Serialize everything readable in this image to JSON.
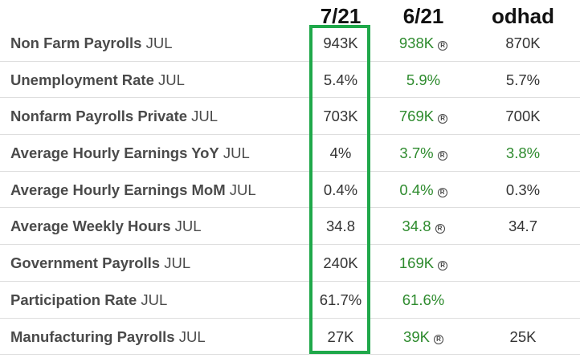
{
  "columns": [
    "7/21",
    "6/21",
    "odhad"
  ],
  "colors": {
    "highlight": "#1fa84a",
    "revised_green": "#2e8b2e",
    "label": "#4a4a4a"
  },
  "rows": [
    {
      "label_bold": "Non Farm Payrolls",
      "label_suffix": " JUL",
      "actual": "943K",
      "previous": "938K",
      "previous_revised": true,
      "forecast": "870K",
      "forecast_green": false
    },
    {
      "label_bold": "Unemployment Rate",
      "label_suffix": " JUL",
      "actual": "5.4%",
      "previous": "5.9%",
      "previous_revised": false,
      "forecast": "5.7%",
      "forecast_green": false
    },
    {
      "label_bold": "Nonfarm Payrolls Private",
      "label_suffix": " JUL",
      "actual": "703K",
      "previous": "769K",
      "previous_revised": true,
      "forecast": "700K",
      "forecast_green": false
    },
    {
      "label_bold": "Average Hourly Earnings YoY",
      "label_suffix": " JUL",
      "actual": "4%",
      "previous": "3.7%",
      "previous_revised": true,
      "forecast": "3.8%",
      "forecast_green": true
    },
    {
      "label_bold": "Average Hourly Earnings MoM",
      "label_suffix": " JUL",
      "actual": "0.4%",
      "previous": "0.4%",
      "previous_revised": true,
      "forecast": "0.3%",
      "forecast_green": false
    },
    {
      "label_bold": "Average Weekly Hours",
      "label_suffix": " JUL",
      "actual": "34.8",
      "previous": "34.8",
      "previous_revised": true,
      "forecast": "34.7",
      "forecast_green": false
    },
    {
      "label_bold": "Government Payrolls",
      "label_suffix": " JUL",
      "actual": "240K",
      "previous": "169K",
      "previous_revised": true,
      "forecast": "",
      "forecast_green": false
    },
    {
      "label_bold": "Participation Rate",
      "label_suffix": " JUL",
      "actual": "61.7%",
      "previous": "61.6%",
      "previous_revised": false,
      "forecast": "",
      "forecast_green": false
    },
    {
      "label_bold": "Manufacturing Payrolls",
      "label_suffix": " JUL",
      "actual": "27K",
      "previous": "39K",
      "previous_revised": true,
      "forecast": "25K",
      "forecast_green": false
    }
  ],
  "revised_marker": "R"
}
